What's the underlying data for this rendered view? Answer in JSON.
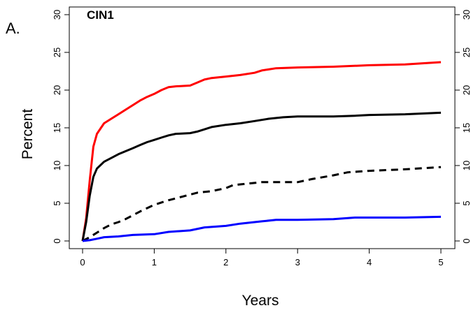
{
  "panel_label": "A.",
  "chart_data": {
    "type": "line",
    "title": "CIN1",
    "xlabel": "Years",
    "ylabel": "Percent",
    "xlim": [
      0,
      5
    ],
    "ylim": [
      0,
      30
    ],
    "x_ticks": [
      0,
      1,
      2,
      3,
      4,
      5
    ],
    "y_ticks": [
      0,
      5,
      10,
      15,
      20,
      25,
      30
    ],
    "secondary_y_axis": true,
    "grid": false,
    "legend": "none",
    "series": [
      {
        "color": "#ff0000",
        "dash": "solid",
        "x": [
          0,
          0.05,
          0.1,
          0.15,
          0.2,
          0.3,
          0.4,
          0.5,
          0.6,
          0.7,
          0.8,
          0.9,
          1.0,
          1.1,
          1.2,
          1.3,
          1.5,
          1.6,
          1.7,
          1.8,
          2.0,
          2.2,
          2.4,
          2.5,
          2.7,
          3.0,
          3.5,
          4.0,
          4.5,
          5.0
        ],
        "y": [
          0,
          3,
          8,
          12.5,
          14.2,
          15.6,
          16.2,
          16.8,
          17.4,
          18.0,
          18.6,
          19.1,
          19.5,
          20.0,
          20.4,
          20.5,
          20.6,
          21.0,
          21.4,
          21.6,
          21.8,
          22.0,
          22.3,
          22.6,
          22.9,
          23.0,
          23.1,
          23.3,
          23.4,
          23.7
        ]
      },
      {
        "color": "#000000",
        "dash": "solid",
        "x": [
          0,
          0.05,
          0.1,
          0.15,
          0.2,
          0.3,
          0.4,
          0.5,
          0.6,
          0.7,
          0.8,
          0.9,
          1.0,
          1.1,
          1.2,
          1.3,
          1.5,
          1.6,
          1.7,
          1.8,
          2.0,
          2.2,
          2.4,
          2.6,
          2.8,
          3.0,
          3.5,
          3.8,
          4.0,
          4.5,
          5.0
        ],
        "y": [
          0,
          2.5,
          6,
          8.5,
          9.6,
          10.5,
          11.0,
          11.5,
          11.9,
          12.3,
          12.7,
          13.1,
          13.4,
          13.7,
          14.0,
          14.2,
          14.3,
          14.5,
          14.8,
          15.1,
          15.4,
          15.6,
          15.9,
          16.2,
          16.4,
          16.5,
          16.5,
          16.6,
          16.7,
          16.8,
          17.0
        ]
      },
      {
        "color": "#000000",
        "dash": "dashed",
        "x": [
          0,
          0.1,
          0.2,
          0.3,
          0.4,
          0.5,
          0.6,
          0.7,
          0.8,
          1.0,
          1.2,
          1.4,
          1.6,
          1.8,
          2.0,
          2.1,
          2.3,
          2.5,
          2.7,
          3.0,
          3.2,
          3.5,
          3.7,
          4.0,
          4.5,
          5.0
        ],
        "y": [
          0,
          0.5,
          1.1,
          1.7,
          2.2,
          2.5,
          2.9,
          3.4,
          3.9,
          4.8,
          5.4,
          5.9,
          6.4,
          6.6,
          7.0,
          7.4,
          7.6,
          7.8,
          7.8,
          7.8,
          8.2,
          8.7,
          9.1,
          9.3,
          9.5,
          9.8
        ]
      },
      {
        "color": "#0000ff",
        "dash": "solid",
        "x": [
          0,
          0.1,
          0.2,
          0.3,
          0.5,
          0.7,
          1.0,
          1.2,
          1.5,
          1.7,
          2.0,
          2.2,
          2.5,
          2.7,
          3.0,
          3.5,
          3.8,
          4.0,
          4.5,
          5.0
        ],
        "y": [
          0,
          0.1,
          0.3,
          0.5,
          0.6,
          0.8,
          0.9,
          1.2,
          1.4,
          1.8,
          2.0,
          2.3,
          2.6,
          2.8,
          2.8,
          2.9,
          3.1,
          3.1,
          3.1,
          3.2
        ]
      }
    ]
  }
}
